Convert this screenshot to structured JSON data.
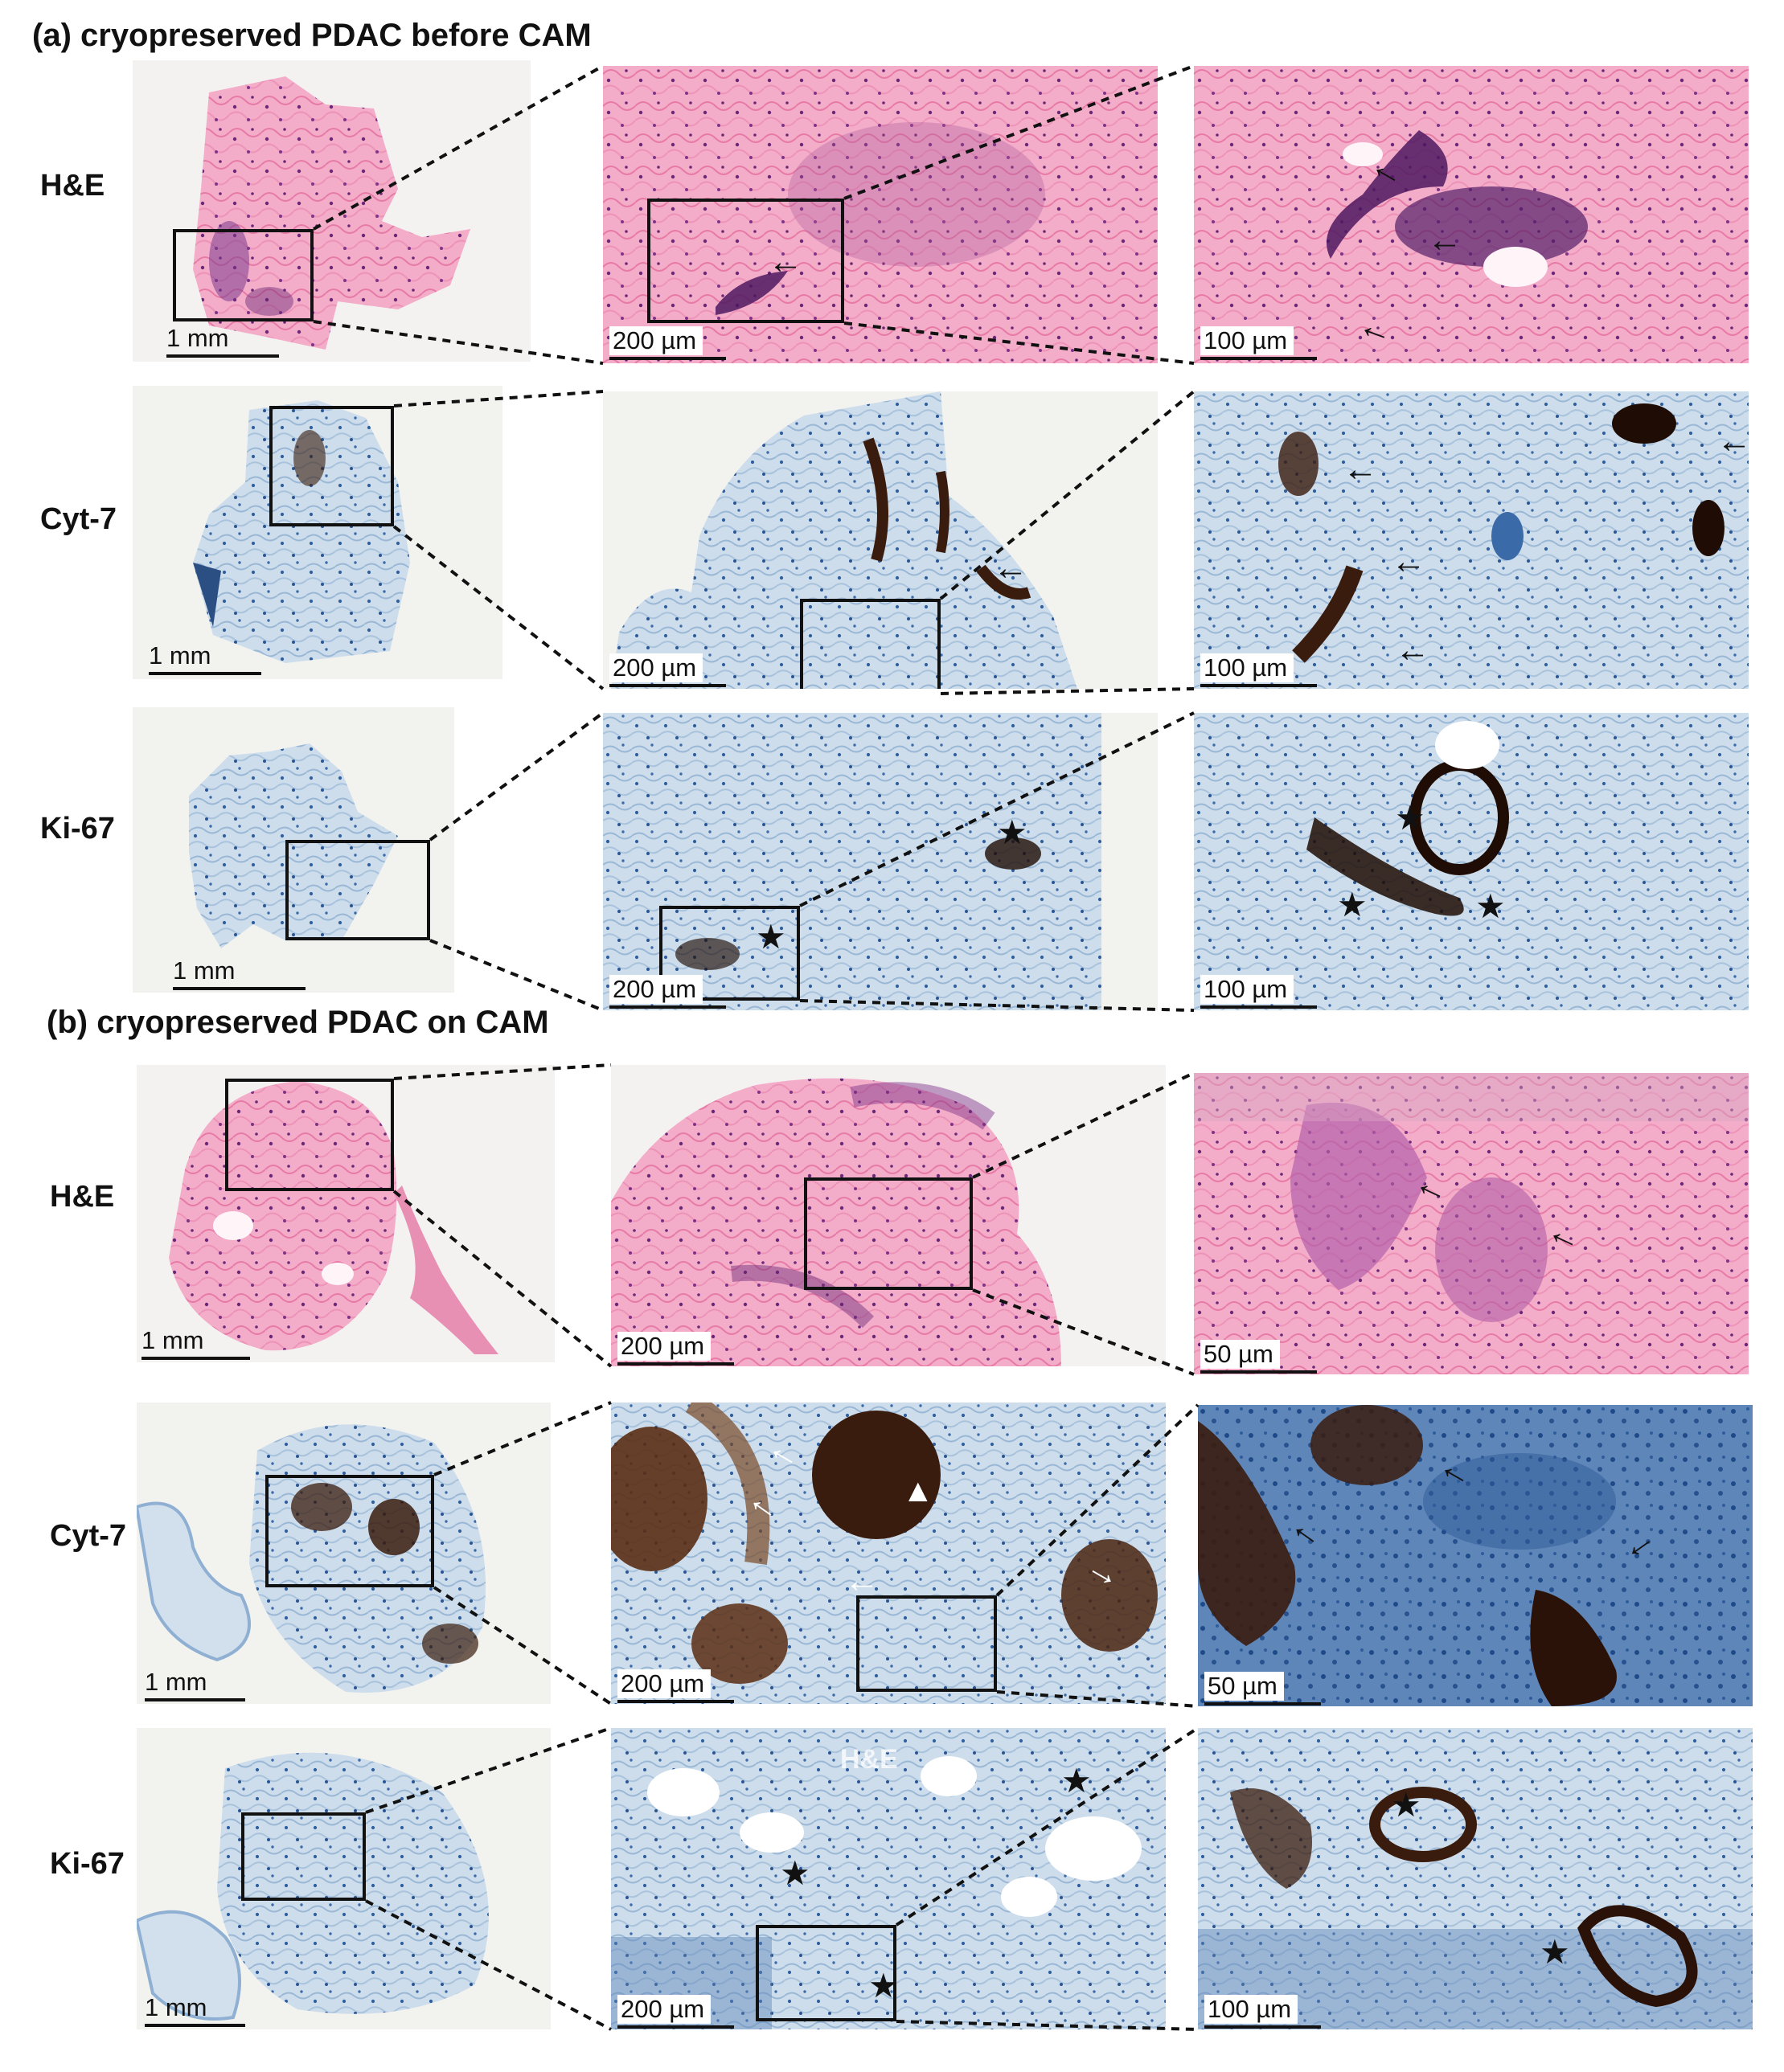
{
  "sections": [
    {
      "id": "a",
      "title": "(a) cryopreserved PDAC before CAM"
    },
    {
      "id": "b",
      "title": "(b) cryopreserved PDAC on CAM"
    }
  ],
  "rows": {
    "a_he": {
      "label": "H&E",
      "scales": [
        "1 mm",
        "200 µm",
        "100 µm"
      ]
    },
    "a_cyt": {
      "label": "Cyt-7",
      "scales": [
        "1 mm",
        "200 µm",
        "100 µm"
      ]
    },
    "a_ki": {
      "label": "Ki-67",
      "scales": [
        "1 mm",
        "200 µm",
        "100 µm"
      ]
    },
    "b_he": {
      "label": "H&E",
      "scales": [
        "1 mm",
        "200 µm",
        "50 µm"
      ]
    },
    "b_cyt": {
      "label": "Cyt-7",
      "scales": [
        "1 mm",
        "200 µm",
        "50 µm"
      ]
    },
    "b_ki": {
      "label": "Ki-67",
      "scales": [
        "1 mm",
        "200 µm",
        "100 µm"
      ]
    }
  },
  "watermark": "H&E",
  "stain_colors": {
    "he_background": "#f2a9c8",
    "he_nuclei": "#5b1f6e",
    "ihc_background": "#c9d9ea",
    "ihc_hematoxylin": "#3c6aa8",
    "dab_positive": "#3a1c0e",
    "slide": "#f2f2ef"
  },
  "markers": {
    "arrow_icon": "left-arrow",
    "star_icon": "star",
    "triangle_icon": "triangle"
  }
}
